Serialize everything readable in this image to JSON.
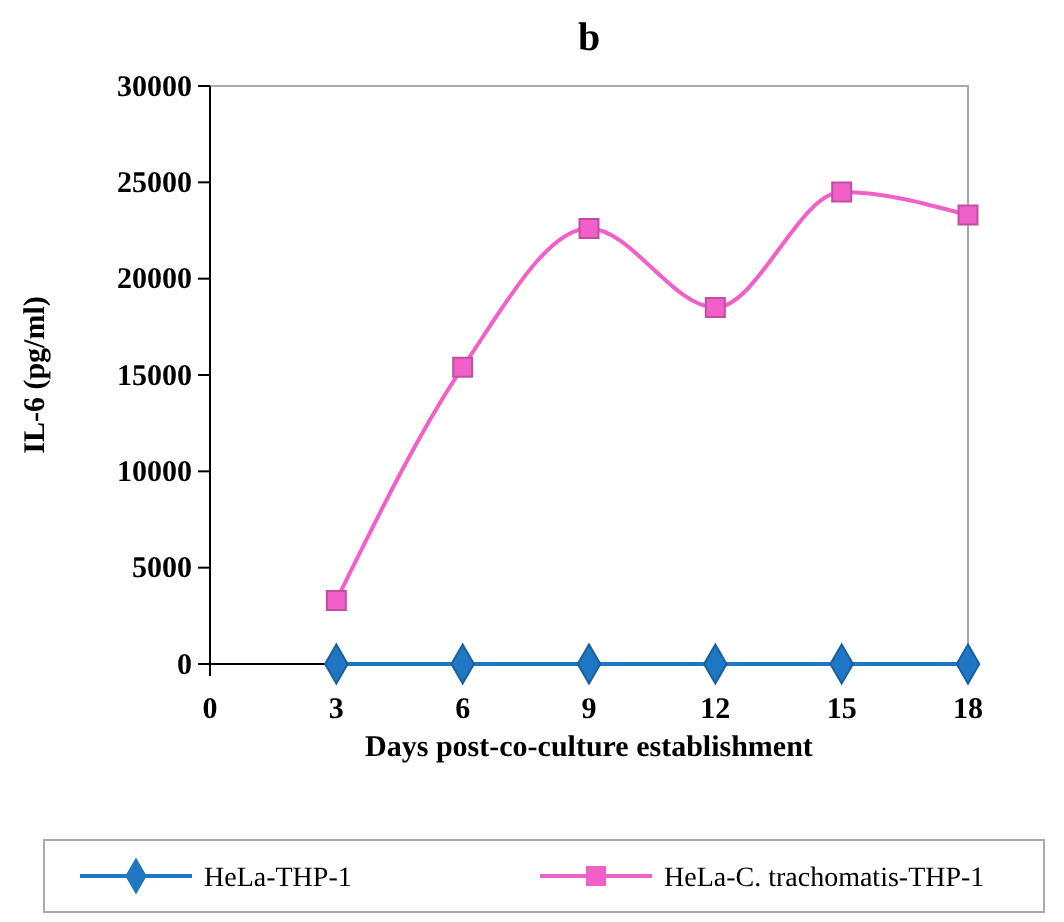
{
  "chart_data": {
    "type": "line",
    "title": "b",
    "xlabel": "Days post-co-culture establishment",
    "ylabel": "IL-6 (pg/ml)",
    "x": [
      3,
      6,
      9,
      12,
      15,
      18
    ],
    "series": [
      {
        "name": "HeLa-THP-1",
        "color": "#1f77c4",
        "marker": "diamond",
        "values": [
          0,
          0,
          0,
          0,
          0,
          0
        ]
      },
      {
        "name": "HeLa-C. trachomatis-THP-1",
        "color": "#f060c8",
        "marker": "square",
        "values": [
          3300,
          15400,
          22600,
          18500,
          24500,
          23300
        ]
      }
    ],
    "xlim": [
      0,
      18
    ],
    "xticks": [
      0,
      3,
      6,
      9,
      12,
      15,
      18
    ],
    "ylim": [
      0,
      30000
    ],
    "yticks": [
      0,
      5000,
      10000,
      15000,
      20000,
      25000,
      30000
    ],
    "grid": false,
    "legend": "bottom"
  }
}
